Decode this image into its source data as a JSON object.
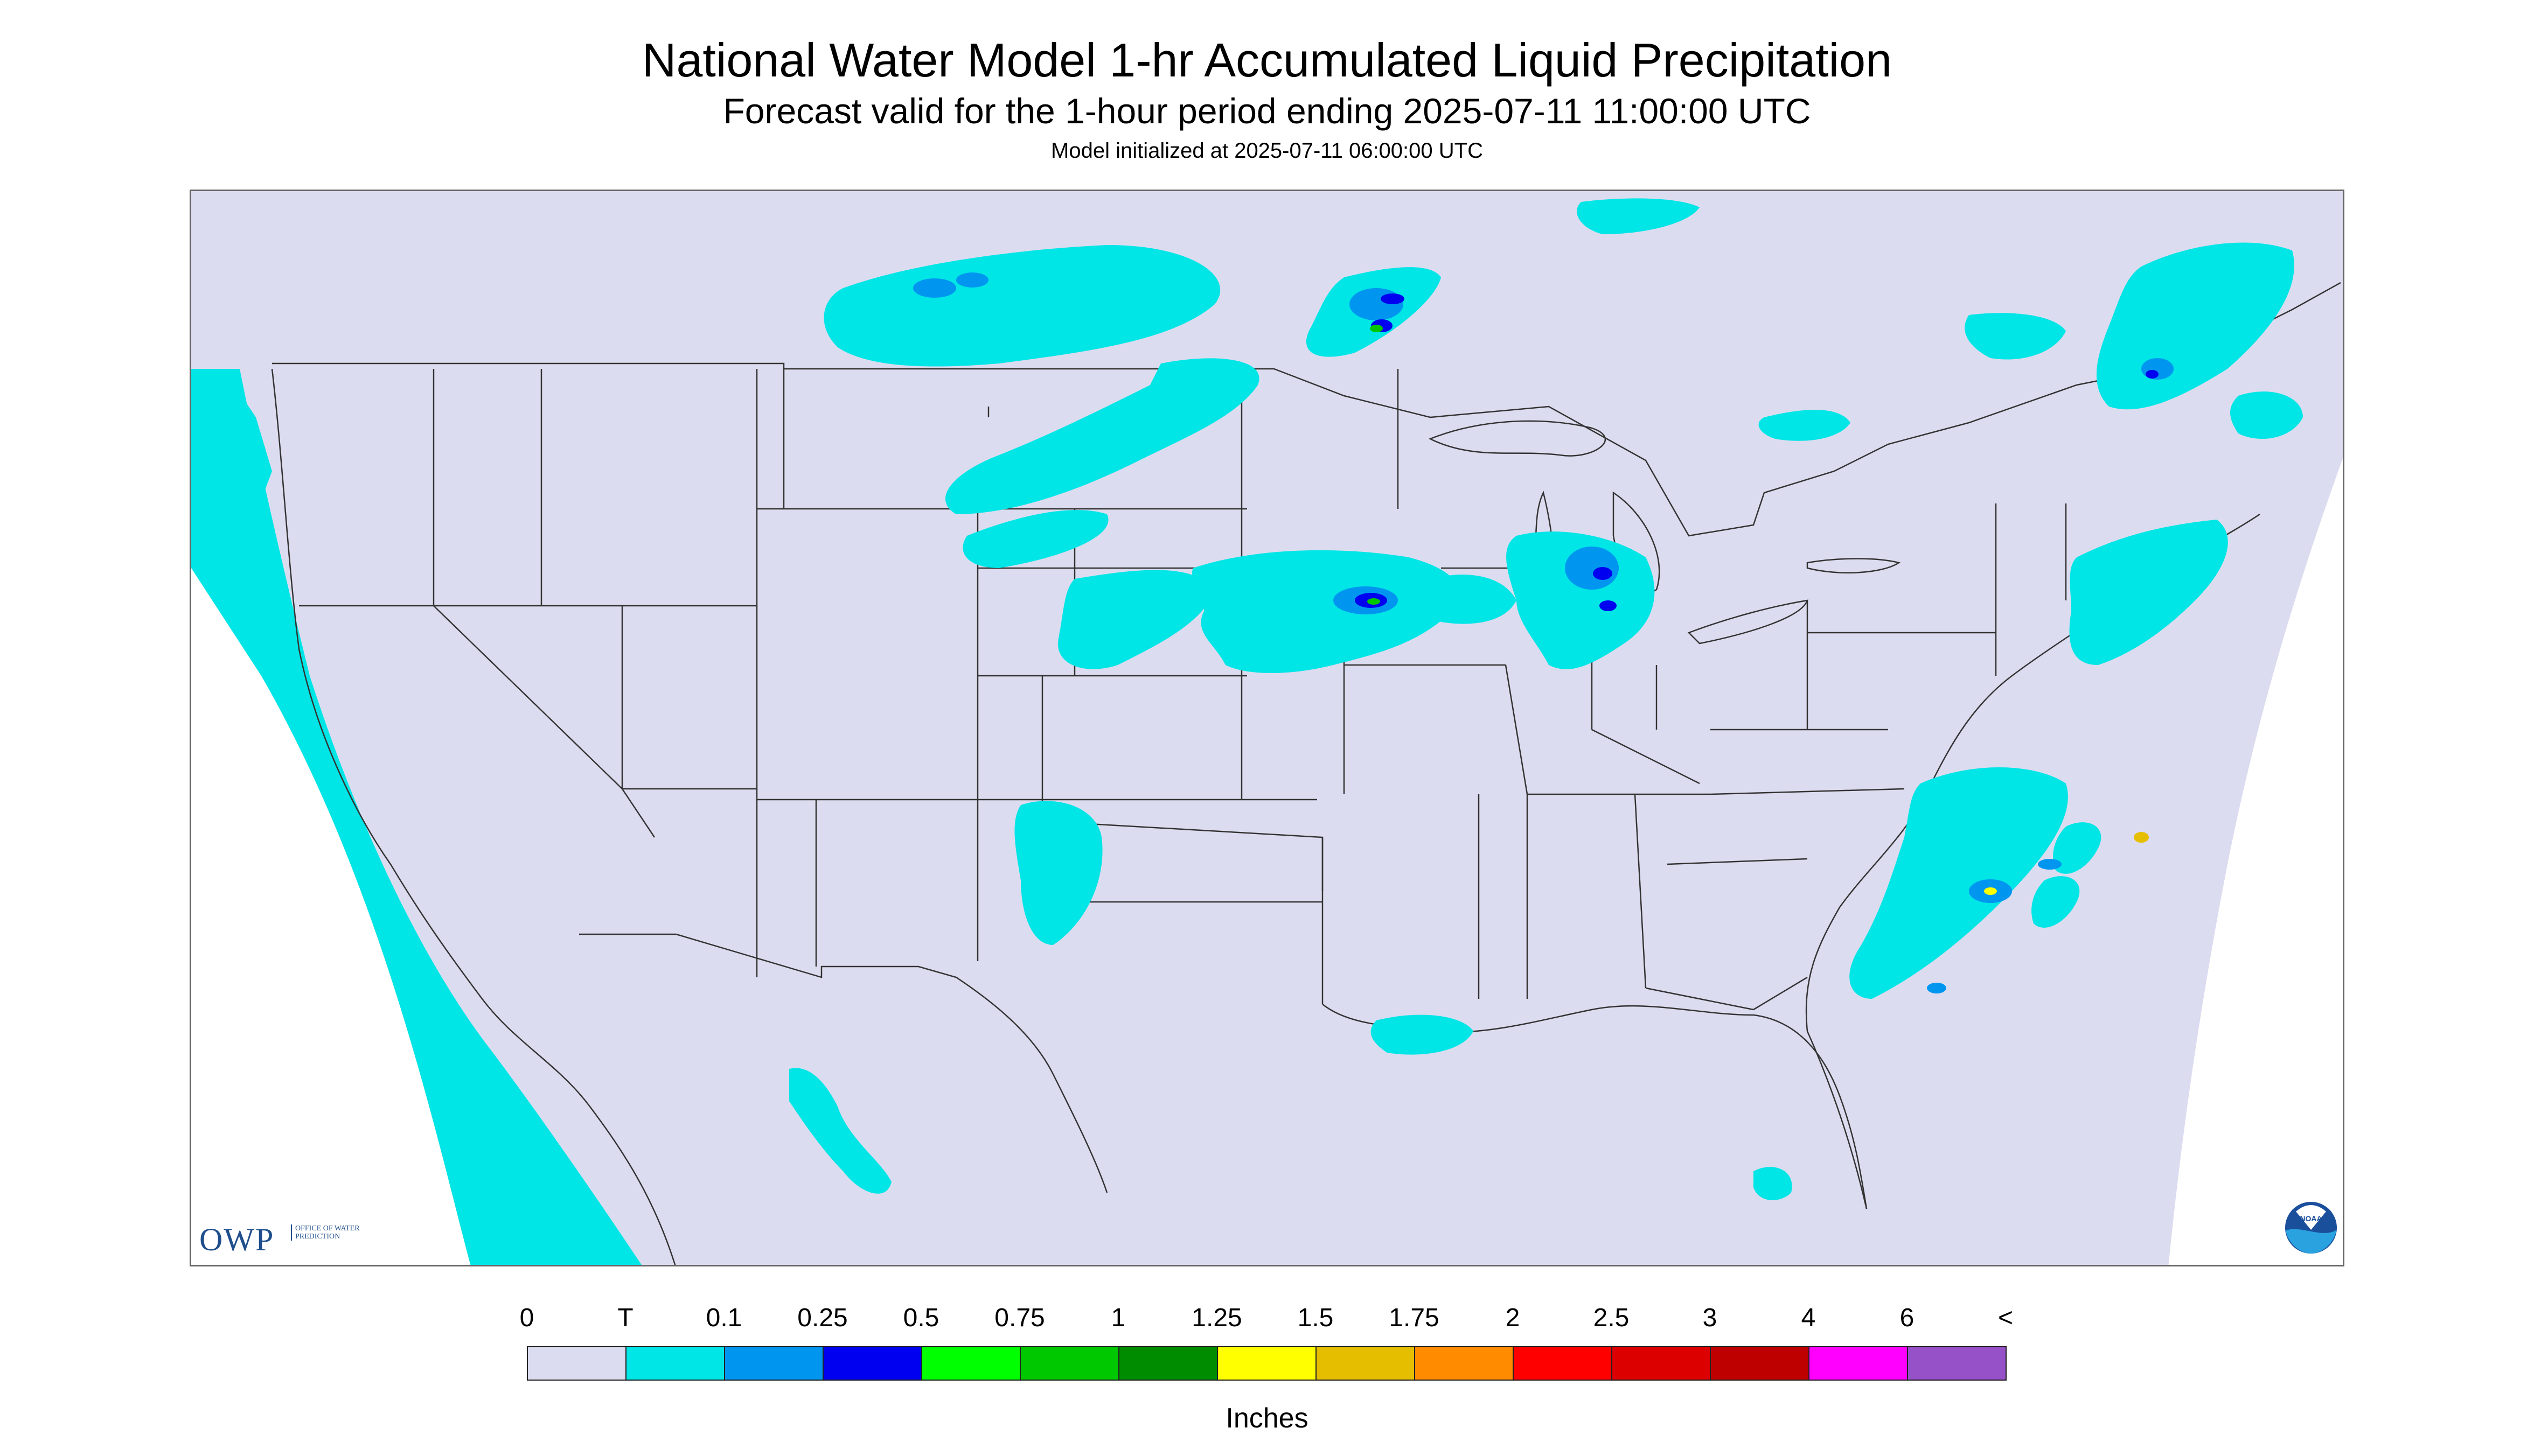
{
  "title": "National Water Model 1-hr Accumulated Liquid Precipitation",
  "subtitle": "Forecast valid for the 1-hour period ending 2025-07-11 11:00:00 UTC",
  "initialized": "Model initialized at 2025-07-11 06:00:00 UTC",
  "logos": {
    "owp_letters": "OWP",
    "owp_text": "OFFICE OF WATER PREDICTION",
    "noaa_text": "NOAA"
  },
  "legend": {
    "units": "Inches",
    "ticks": [
      "0",
      "T",
      "0.1",
      "0.25",
      "0.5",
      "0.75",
      "1",
      "1.25",
      "1.5",
      "1.75",
      "2",
      "2.5",
      "3",
      "4",
      "6",
      "<"
    ],
    "colors": [
      "#dcdcf0",
      "#00e5e5",
      "#0096f0",
      "#0000f0",
      "#00ff00",
      "#00c800",
      "#008c00",
      "#ffff00",
      "#e6be00",
      "#ff8c00",
      "#ff0000",
      "#dc0000",
      "#be0000",
      "#ff00ff",
      "#9650c8"
    ]
  },
  "colors": {
    "no_precip": "#dcdcf0",
    "trace": "#00e5e5",
    "background": "#ffffff",
    "borders": "#333333"
  }
}
